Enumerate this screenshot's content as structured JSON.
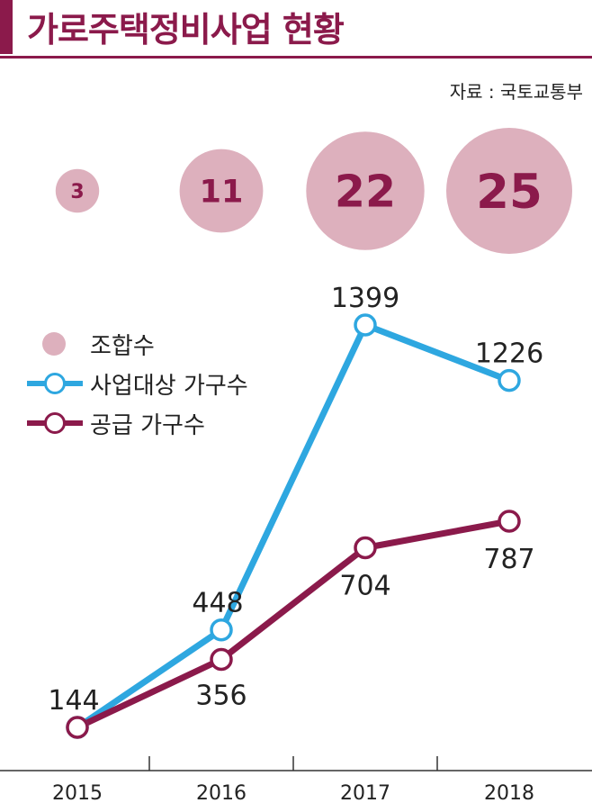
{
  "title": "가로주택정비사업 현황",
  "source": "자료 : 국토교통부",
  "colors": {
    "accent": "#8b1a4b",
    "bubble": "#ddb0bd",
    "bubble_text": "#8b1a4b",
    "series_target": "#2ea7e0",
    "series_supply": "#8b1a4b"
  },
  "legend": [
    {
      "label": "조합수",
      "kind": "bubble"
    },
    {
      "label": "사업대상 가구수",
      "kind": "line-target"
    },
    {
      "label": "공급 가구수",
      "kind": "line-supply"
    }
  ],
  "chart_data": {
    "type": "line",
    "title": "가로주택정비사업 현황",
    "categories": [
      "2015",
      "2016",
      "2017",
      "2018"
    ],
    "bubbles": {
      "name": "조합수",
      "values": [
        3,
        11,
        22,
        25
      ]
    },
    "series": [
      {
        "name": "사업대상 가구수",
        "values": [
          144,
          448,
          1399,
          1226
        ]
      },
      {
        "name": "공급 가구수",
        "values": [
          144,
          356,
          704,
          787
        ]
      }
    ],
    "ylim": [
      0,
      1450
    ],
    "grid": false,
    "legend_position": "left"
  }
}
